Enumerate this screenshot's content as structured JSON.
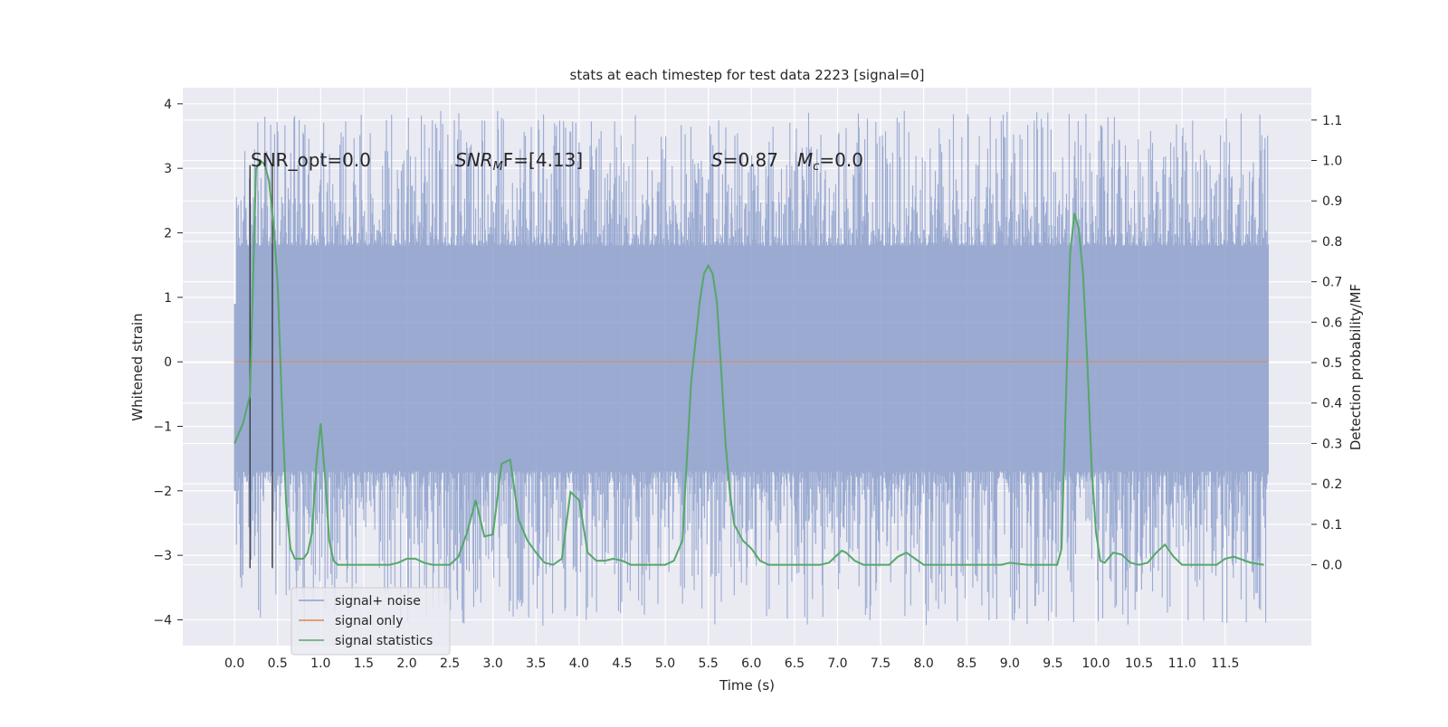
{
  "chart_data": {
    "type": "line",
    "title": "stats at each timestep for test data 2223 [signal=0]",
    "xlabel": "Time (s)",
    "ylabel": "Whitened strain",
    "ylabel_right": "Detection probability/MF",
    "xlim": [
      -0.6,
      12.5
    ],
    "ylim": [
      -4.4,
      4.25
    ],
    "ylim_right": [
      -0.2,
      1.18
    ],
    "grid": true,
    "legend_position": "lower-left",
    "x_ticks": [
      "0.0",
      "0.5",
      "1.0",
      "1.5",
      "2.0",
      "2.5",
      "3.0",
      "3.5",
      "4.0",
      "4.5",
      "5.0",
      "5.5",
      "6.0",
      "6.5",
      "7.0",
      "7.5",
      "8.0",
      "8.5",
      "9.0",
      "9.5",
      "10.0",
      "10.5",
      "11.0",
      "11.5"
    ],
    "y_ticks": [
      "4",
      "3",
      "2",
      "1",
      "0",
      "−1",
      "−2",
      "−3",
      "−4"
    ],
    "y_ticks_right": [
      "1.1",
      "1.0",
      "0.9",
      "0.8",
      "0.7",
      "0.6",
      "0.5",
      "0.4",
      "0.3",
      "0.2",
      "0.1",
      "0.0"
    ],
    "annotations": {
      "snr_opt": "SNR_opt=0.0",
      "snr_mf_base": "SNR",
      "snr_mf_sub": "M",
      "snr_mf_rest": "F=[4.13]",
      "s_label": "S",
      "s_value": "=0.87",
      "mc_base": "M",
      "mc_sub": "c",
      "mc_value": "=0.0"
    },
    "series": [
      {
        "name": "signal+ noise",
        "color": "#8c9fcb",
        "kind": "noise",
        "x_range": [
          0.0,
          12.0
        ],
        "band_upper": 1.8,
        "band_lower": -1.7,
        "peak_upper": 3.9,
        "peak_lower": -4.1
      },
      {
        "name": "signal only",
        "color": "#dd8452",
        "x": [
          0.0,
          12.0
        ],
        "y": [
          0.0,
          0.0
        ]
      },
      {
        "name": "signal statistics",
        "color": "#55a868",
        "axis": "right",
        "x": [
          0.0,
          0.1,
          0.18,
          0.25,
          0.3,
          0.35,
          0.4,
          0.45,
          0.5,
          0.55,
          0.6,
          0.65,
          0.7,
          0.75,
          0.8,
          0.85,
          0.9,
          0.95,
          1.0,
          1.05,
          1.1,
          1.15,
          1.2,
          1.25,
          1.3,
          1.4,
          1.6,
          1.8,
          1.9,
          2.0,
          2.1,
          2.2,
          2.3,
          2.4,
          2.5,
          2.6,
          2.7,
          2.8,
          2.9,
          3.0,
          3.1,
          3.2,
          3.3,
          3.4,
          3.5,
          3.6,
          3.7,
          3.8,
          3.9,
          4.0,
          4.1,
          4.2,
          4.3,
          4.4,
          4.5,
          4.6,
          4.8,
          5.0,
          5.1,
          5.2,
          5.3,
          5.4,
          5.45,
          5.5,
          5.55,
          5.6,
          5.65,
          5.7,
          5.75,
          5.8,
          5.9,
          6.0,
          6.1,
          6.2,
          6.4,
          6.6,
          6.8,
          6.9,
          7.0,
          7.05,
          7.1,
          7.2,
          7.3,
          7.5,
          7.6,
          7.7,
          7.8,
          7.9,
          8.0,
          8.2,
          8.5,
          8.8,
          8.9,
          9.0,
          9.2,
          9.5,
          9.55,
          9.6,
          9.65,
          9.7,
          9.75,
          9.8,
          9.85,
          9.9,
          9.95,
          10.0,
          10.05,
          10.1,
          10.2,
          10.3,
          10.4,
          10.5,
          10.6,
          10.7,
          10.8,
          10.9,
          11.0,
          11.2,
          11.4,
          11.5,
          11.6,
          11.8,
          11.95
        ],
        "y": [
          0.3,
          0.35,
          0.42,
          0.98,
          1.0,
          0.99,
          0.95,
          0.85,
          0.7,
          0.4,
          0.15,
          0.04,
          0.015,
          0.015,
          0.015,
          0.03,
          0.08,
          0.25,
          0.35,
          0.22,
          0.06,
          0.01,
          0.0,
          0.0,
          0.0,
          0.0,
          0.0,
          0.0,
          0.005,
          0.015,
          0.015,
          0.005,
          0.0,
          0.0,
          0.0,
          0.02,
          0.08,
          0.16,
          0.07,
          0.075,
          0.25,
          0.26,
          0.11,
          0.06,
          0.03,
          0.005,
          0.0,
          0.015,
          0.18,
          0.16,
          0.03,
          0.01,
          0.01,
          0.015,
          0.01,
          0.0,
          0.0,
          0.0,
          0.01,
          0.06,
          0.45,
          0.65,
          0.72,
          0.74,
          0.72,
          0.65,
          0.48,
          0.3,
          0.18,
          0.1,
          0.06,
          0.04,
          0.01,
          0.0,
          0.0,
          0.0,
          0.0,
          0.005,
          0.025,
          0.035,
          0.03,
          0.01,
          0.0,
          0.0,
          0.0,
          0.02,
          0.03,
          0.015,
          0.0,
          0.0,
          0.0,
          0.0,
          0.0,
          0.005,
          0.0,
          0.0,
          0.0,
          0.04,
          0.4,
          0.77,
          0.87,
          0.83,
          0.72,
          0.5,
          0.24,
          0.08,
          0.01,
          0.005,
          0.03,
          0.025,
          0.005,
          0.0,
          0.005,
          0.03,
          0.05,
          0.02,
          0.0,
          0.0,
          0.0,
          0.015,
          0.02,
          0.005,
          0.0
        ]
      }
    ],
    "vertical_markers": {
      "color": "#333333",
      "x": [
        0.18,
        0.44
      ]
    }
  }
}
